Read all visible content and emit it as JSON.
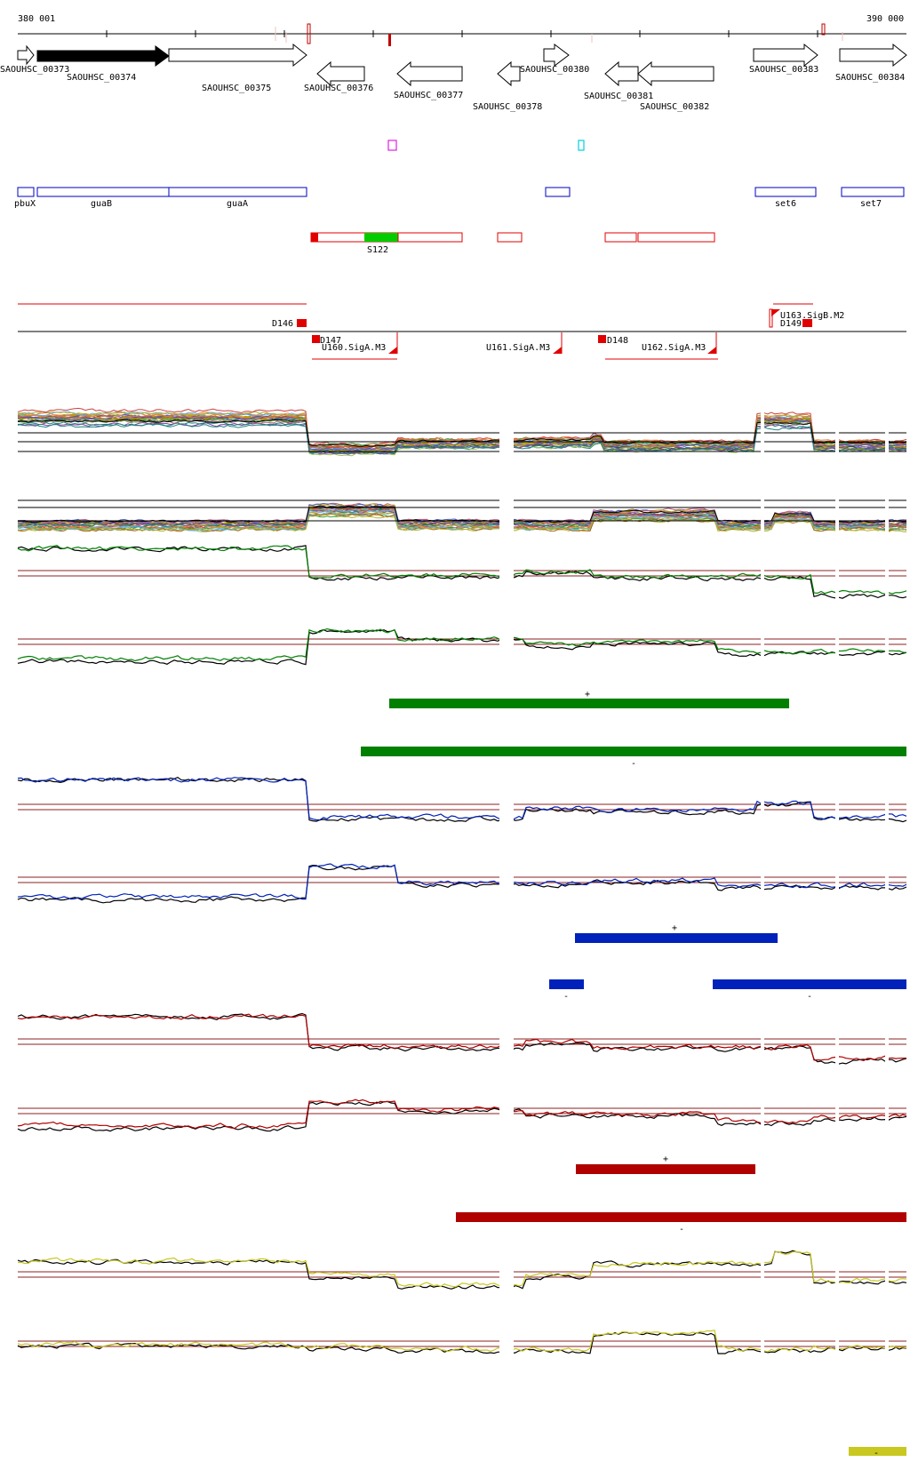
{
  "ruler": {
    "start_label": "380 001",
    "end_label": "390 000"
  },
  "genes": [
    {
      "id": "SAOUHSC_00373",
      "strand": "+",
      "filled": false
    },
    {
      "id": "SAOUHSC_00374",
      "strand": "+",
      "filled": true
    },
    {
      "id": "SAOUHSC_00375",
      "strand": "+",
      "filled": false
    },
    {
      "id": "SAOUHSC_00376",
      "strand": "-",
      "filled": false
    },
    {
      "id": "SAOUHSC_00377",
      "strand": "-",
      "filled": false
    },
    {
      "id": "SAOUHSC_00378",
      "strand": "-",
      "filled": false
    },
    {
      "id": "SAOUHSC_00380",
      "strand": "+",
      "filled": false
    },
    {
      "id": "SAOUHSC_00381",
      "strand": "-",
      "filled": false
    },
    {
      "id": "SAOUHSC_00382",
      "strand": "-",
      "filled": false
    },
    {
      "id": "SAOUHSC_00383",
      "strand": "+",
      "filled": false
    },
    {
      "id": "SAOUHSC_00384",
      "strand": "+",
      "filled": false
    }
  ],
  "gene_names": [
    "pbuX",
    "guaB",
    "guaA",
    "set6",
    "set7"
  ],
  "segment_label": "S122",
  "features_upper": [
    {
      "label": "D146"
    },
    {
      "label": "D147"
    },
    {
      "label": "D148"
    },
    {
      "label": "D149"
    },
    {
      "label": "U163.SigB.M2"
    }
  ],
  "features_lower": [
    {
      "label": "U160.SigA.M3"
    },
    {
      "label": "U161.SigA.M3"
    },
    {
      "label": "U162.SigA.M3"
    }
  ],
  "strand_labels": {
    "plus": "+",
    "minus": "-"
  },
  "colors": {
    "green": "#008000",
    "blue": "#0022bb",
    "red": "#b00000",
    "yellow": "#c8c820",
    "gene_box": "#0000c0",
    "feature_red": "#e00000",
    "segment_green": "#00cc00",
    "baseline": "#8b2020"
  }
}
